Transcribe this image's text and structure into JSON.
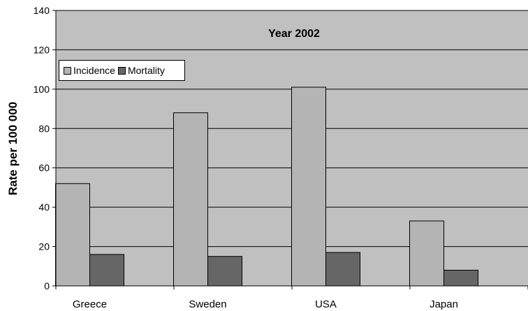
{
  "chart_data": {
    "type": "bar",
    "title": "Year 2002",
    "ylabel": "Rate per 100 000",
    "xlabel": "",
    "categories": [
      "Greece",
      "Sweden",
      "USA",
      "Japan"
    ],
    "series": [
      {
        "name": "Incidence",
        "values": [
          52,
          88,
          101,
          33
        ],
        "color": "#b4b4b4"
      },
      {
        "name": "Mortality",
        "values": [
          16,
          15,
          17,
          8
        ],
        "color": "#666666"
      }
    ],
    "ylim": [
      0,
      140
    ],
    "yticks": [
      0,
      20,
      40,
      60,
      80,
      100,
      120,
      140
    ],
    "grid": true,
    "legend_position": "top-left",
    "plot_background": "#c0c0c0"
  }
}
